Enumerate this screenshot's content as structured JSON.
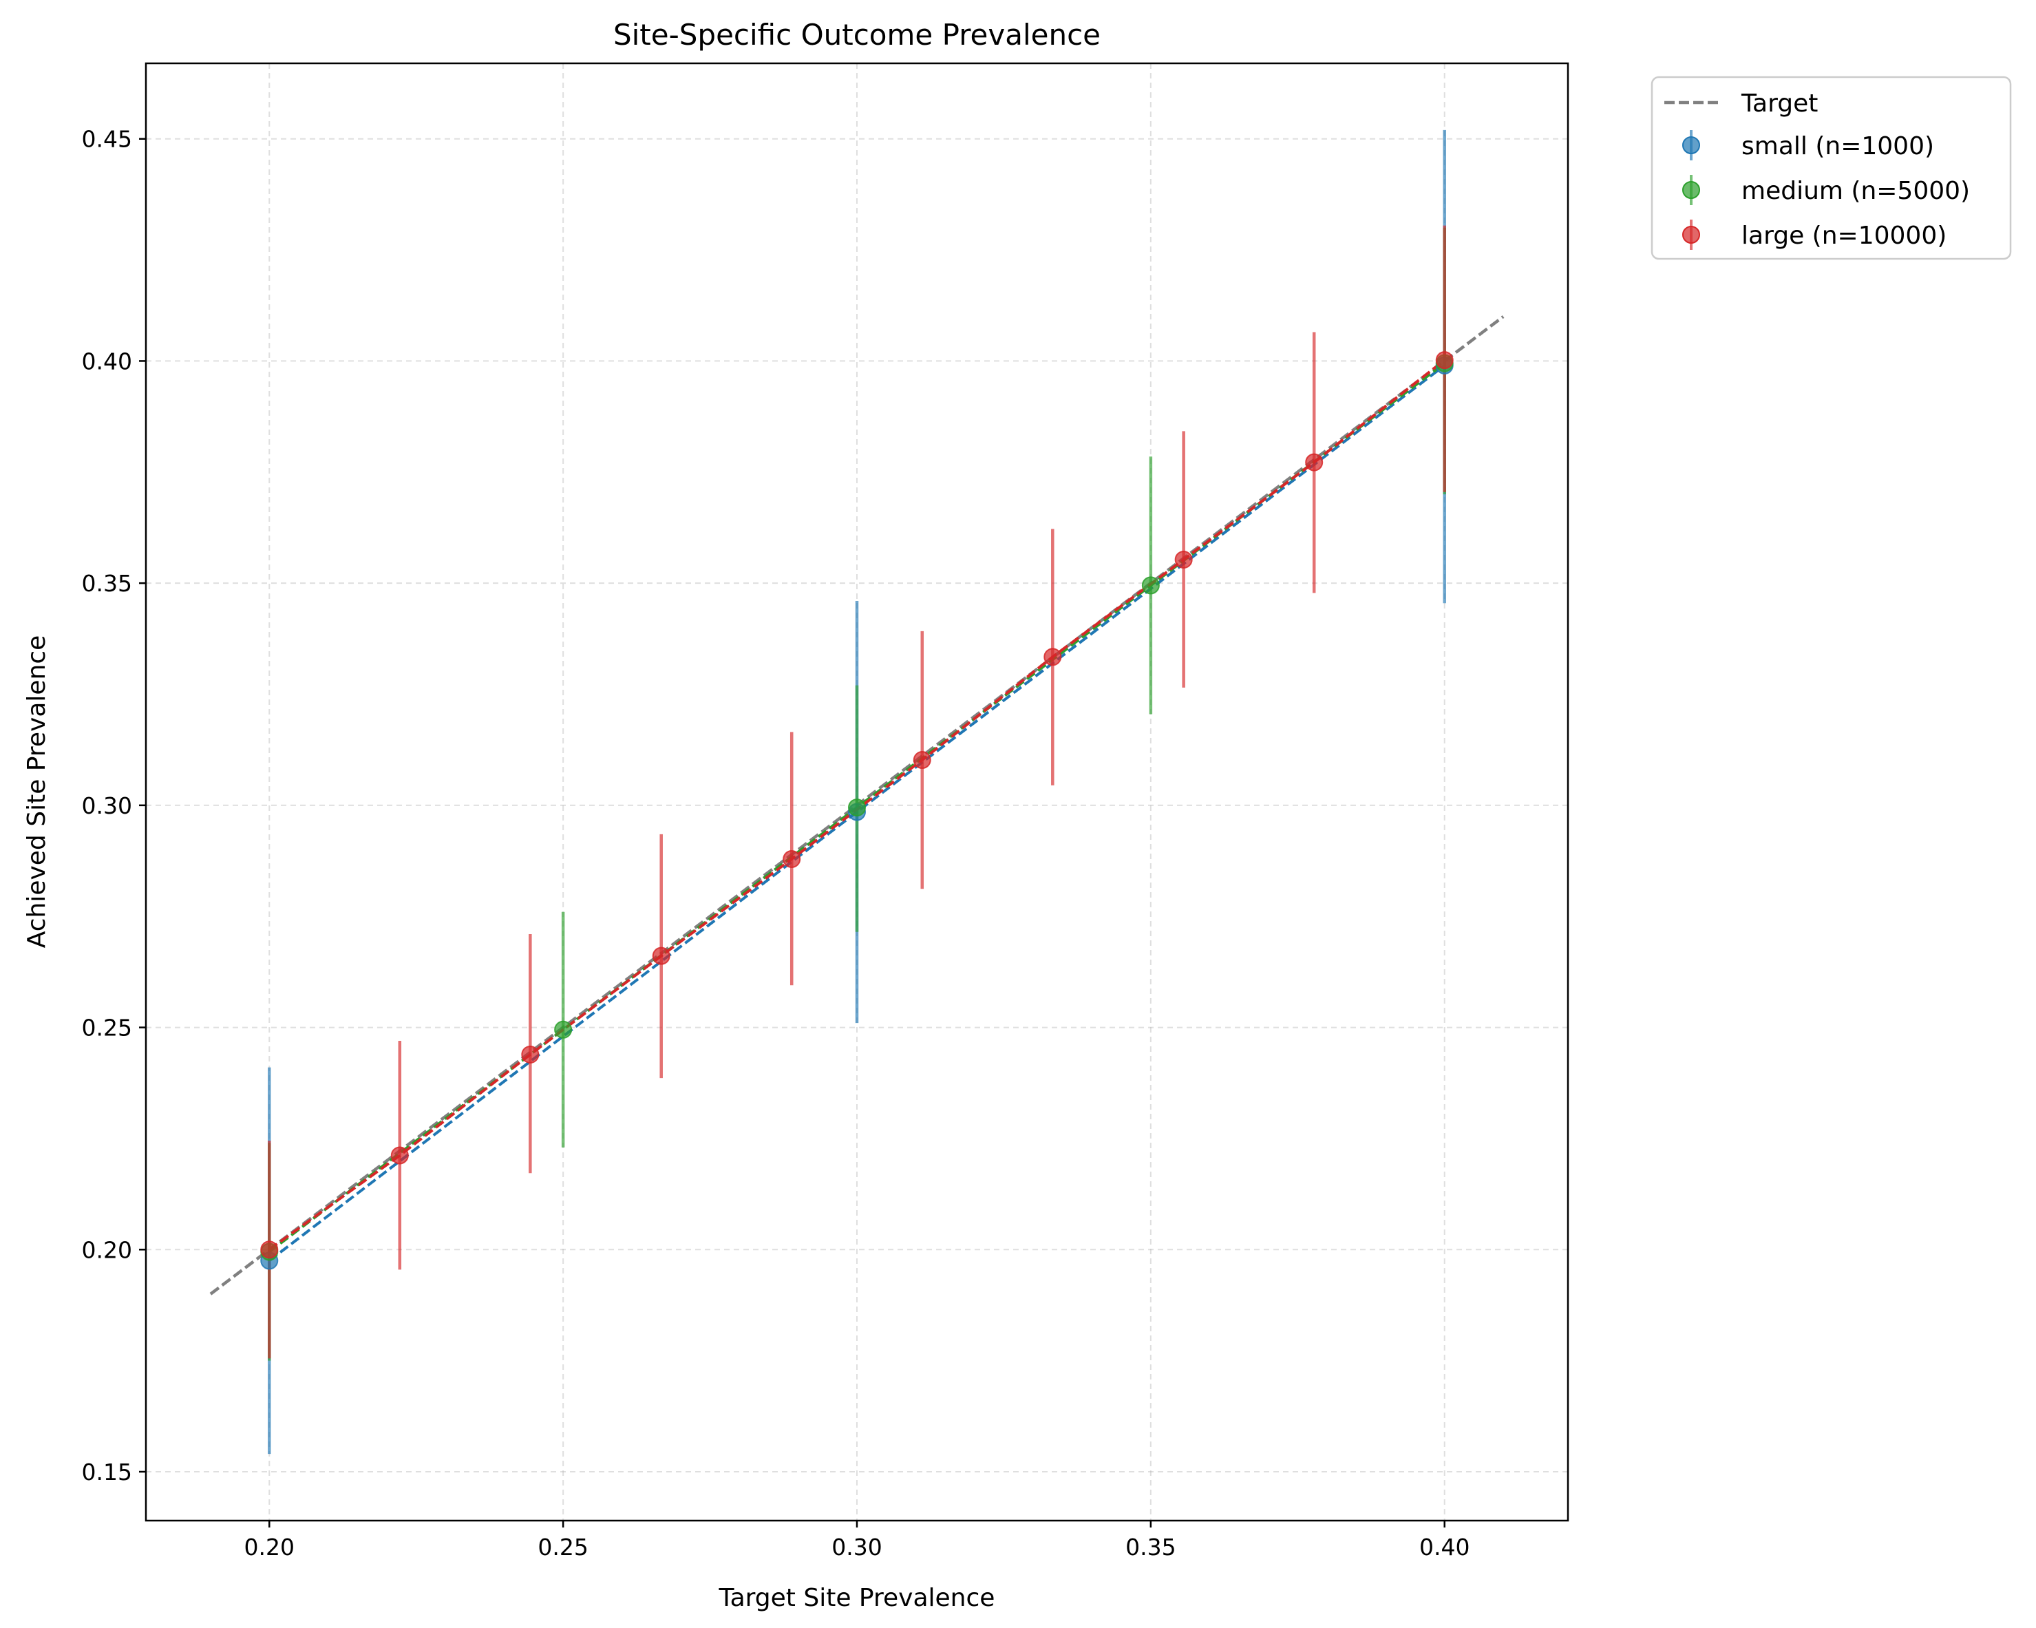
{
  "chart_data": {
    "type": "scatter",
    "title": "Site-Specific Outcome Prevalence",
    "xlabel": "Target Site Prevalence",
    "ylabel": "Achieved Site Prevalence",
    "xlim": [
      0.179,
      0.421
    ],
    "ylim": [
      0.139,
      0.467
    ],
    "xticks": [
      "0.20",
      "0.25",
      "0.30",
      "0.35",
      "0.40"
    ],
    "yticks": [
      "0.15",
      "0.20",
      "0.25",
      "0.30",
      "0.35",
      "0.40",
      "0.45"
    ],
    "grid": true,
    "legend_position": "outside upper right",
    "reference_line": {
      "name": "Target",
      "x": [
        0.19,
        0.41
      ],
      "y": [
        0.19,
        0.41
      ],
      "color": "#808080",
      "style": "dashed"
    },
    "series": [
      {
        "name": "small (n=1000)",
        "color": "#1f77b4",
        "x": [
          0.2,
          0.3,
          0.4
        ],
        "y": [
          0.1975,
          0.2985,
          0.399
        ],
        "err_low": [
          0.154,
          0.251,
          0.3455
        ],
        "err_high": [
          0.241,
          0.346,
          0.452
        ]
      },
      {
        "name": "medium (n=5000)",
        "color": "#2ca02c",
        "x": [
          0.2,
          0.25,
          0.3,
          0.35,
          0.4
        ],
        "y": [
          0.1995,
          0.2495,
          0.2995,
          0.3495,
          0.3995
        ],
        "err_low": [
          0.175,
          0.223,
          0.2715,
          0.3205,
          0.37
        ],
        "err_high": [
          0.224,
          0.276,
          0.327,
          0.3785,
          0.43
        ]
      },
      {
        "name": "large (n=10000)",
        "color": "#d62728",
        "x": [
          0.2,
          0.2222,
          0.2444,
          0.2667,
          0.2889,
          0.3111,
          0.3333,
          0.3556,
          0.3778,
          0.4
        ],
        "y": [
          0.2,
          0.2212,
          0.2439,
          0.2661,
          0.2879,
          0.3102,
          0.3334,
          0.3553,
          0.3772,
          0.4002
        ],
        "err_low": [
          0.1755,
          0.1955,
          0.2172,
          0.2386,
          0.2595,
          0.2812,
          0.3045,
          0.3265,
          0.3478,
          0.3705
        ],
        "err_high": [
          0.2245,
          0.247,
          0.271,
          0.2935,
          0.3165,
          0.3392,
          0.3622,
          0.3842,
          0.4065,
          0.4305
        ]
      }
    ]
  }
}
